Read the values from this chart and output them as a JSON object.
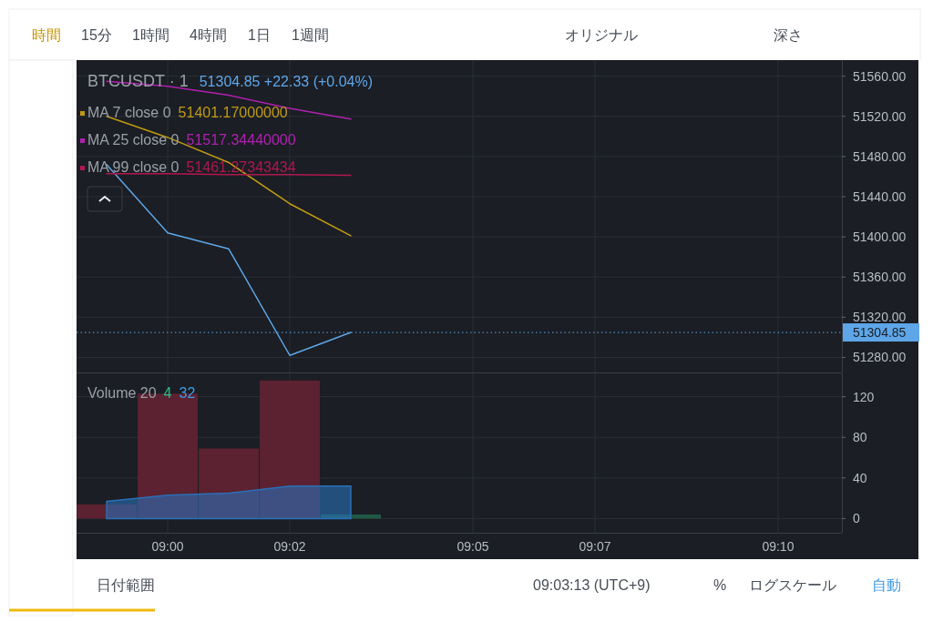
{
  "chart_data": [
    {
      "type": "other",
      "annotations": [
        "時間",
        "15分",
        "1時間",
        "4時間",
        "1日",
        "1週間",
        "オリジナル",
        "深さ",
        "日付範囲",
        "09:03:13 (UTC+9)",
        "%",
        "ログスケール",
        "自動"
      ]
    },
    {
      "type": "line",
      "title": "BTCUSDT · 1",
      "subtitle": "51304.85 +22.33 (+0.04%)",
      "x": [
        8.983333,
        9.0,
        9.016667,
        9.033333,
        9.05
      ],
      "series": [
        {
          "color": "#5ea6e8",
          "values": [
            51472,
            51404,
            51388,
            51282,
            51304.85
          ]
        },
        {
          "name": "MA 7 close 0",
          "color": "#c09a12",
          "values": [
            51520,
            51499,
            51474,
            51433,
            51401.17
          ]
        },
        {
          "name": "MA 25 close 0",
          "color": "#b020b0",
          "values": [
            51555,
            51550,
            51541,
            51528,
            51517.34
          ]
        },
        {
          "name": "MA 99 close 0",
          "color": "#b0184f",
          "values": [
            51463,
            51463,
            51462,
            51462,
            51461.27
          ]
        }
      ],
      "annotations": [
        "51401.17000000",
        "51517.34440000",
        "51461.27343434"
      ],
      "xlim": [
        8.9751,
        9.1841
      ],
      "ylim": [
        51265,
        51576
      ],
      "xticks": [
        9.0,
        9.033333,
        9.083333,
        9.116667,
        9.166667
      ],
      "yticks": [
        {
          "value": 51280,
          "label": "51280.00"
        },
        {
          "value": 51320,
          "label": "51320.00"
        },
        {
          "value": 51360,
          "label": "51360.00"
        },
        {
          "value": 51400,
          "label": "51400.00"
        },
        {
          "value": 51440,
          "label": "51440.00"
        },
        {
          "value": 51480,
          "label": "51480.00"
        },
        {
          "value": 51520,
          "label": "51520.00"
        },
        {
          "value": 51560,
          "label": "51560.00"
        }
      ],
      "ref_lines": [
        {
          "axis": "y",
          "value": 51304.85,
          "label": "51304.85",
          "color": "#5ea6e8",
          "line_style": "dotted"
        }
      ],
      "grid": true,
      "legend": "top left",
      "tick_labels": "y"
    },
    {
      "type": "bar",
      "title": "Volume 20",
      "x": [
        8.983333,
        9.0,
        9.016667,
        9.033333,
        9.05
      ],
      "series": [
        {
          "type": "bar",
          "colors": [
            "#5c2231",
            "#5c2231",
            "#5c2231",
            "#5c2231",
            "#1f5a46"
          ],
          "values": [
            14,
            123,
            69,
            136,
            4
          ]
        },
        {
          "type": "area",
          "color": "#2a6fb8",
          "values": [
            17,
            23,
            25,
            32,
            32
          ]
        }
      ],
      "annotations": [
        "4",
        "32"
      ],
      "xlim": [
        8.9751,
        9.1841
      ],
      "ylim": [
        -14,
        143
      ],
      "xticks": [
        {
          "value": 9.0,
          "label": "09:00"
        },
        {
          "value": 9.033333,
          "label": "09:02"
        },
        {
          "value": 9.083333,
          "label": "09:05"
        },
        {
          "value": 9.116667,
          "label": "09:07"
        },
        {
          "value": 9.166667,
          "label": "09:10"
        }
      ],
      "yticks": [
        0,
        40,
        80,
        120
      ],
      "grid": true
    }
  ]
}
